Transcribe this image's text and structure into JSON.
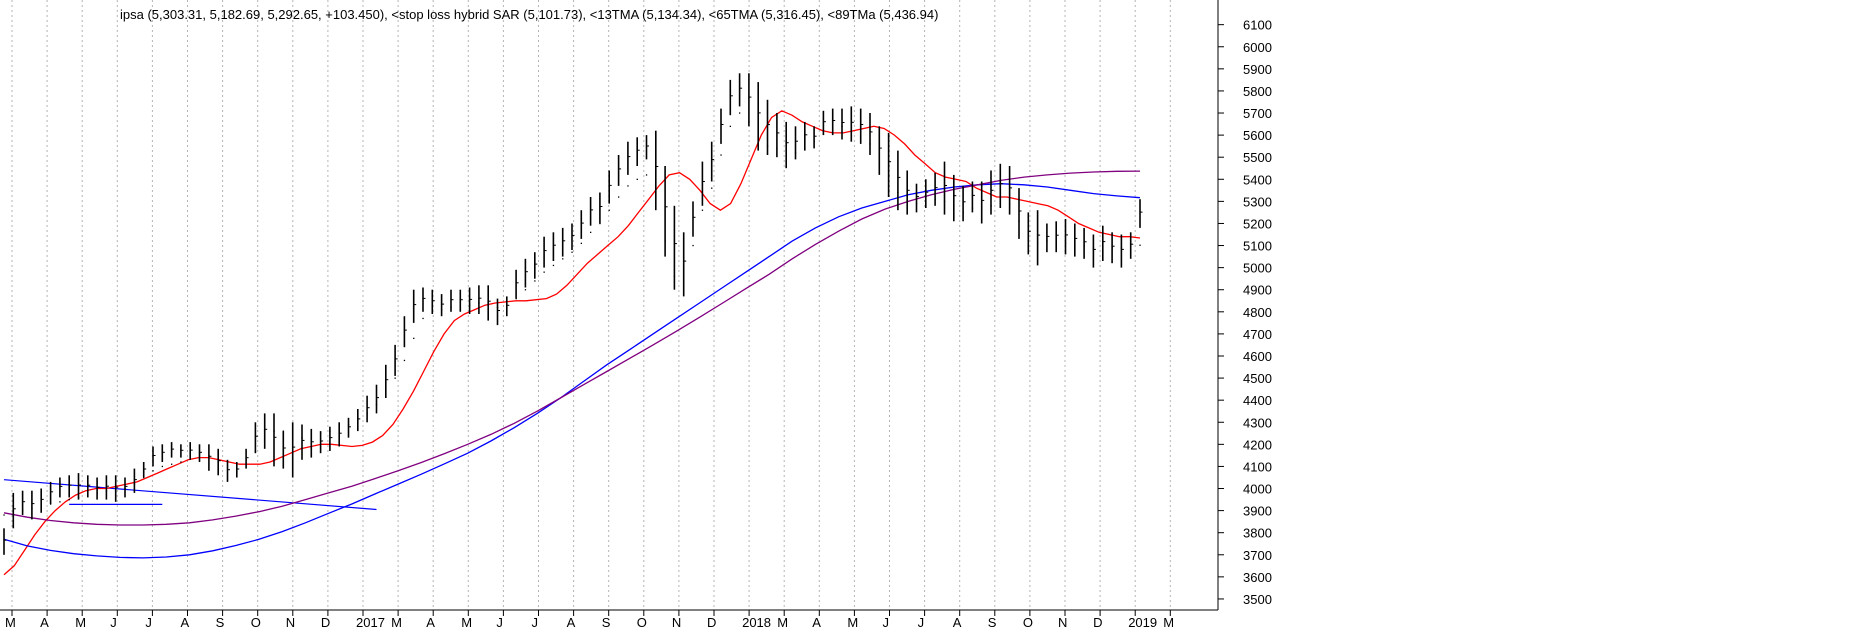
{
  "colors": {
    "background": "#ffffff",
    "grid": "#b4b4b4",
    "axis": "#000000",
    "price": "#000000",
    "sar": "#000000",
    "tma13": "#ff0000",
    "tma65": "#0000ff",
    "tma89": "#800080",
    "trendline": "#0000ff"
  },
  "chart_data": {
    "type": "line",
    "title": "ipsa (5,303.31, 5,182.69, 5,292.65, +103.450), <stop loss hybrid SAR (5,101.73), <13TMA (5,134.34), <65TMA (5,316.45), <89TMa (5,436.94)",
    "ylim": [
      3450,
      6180
    ],
    "y_ticks": [
      3500,
      3600,
      3700,
      3800,
      3900,
      4000,
      4100,
      4200,
      4300,
      4400,
      4500,
      4600,
      4700,
      4800,
      4900,
      5000,
      5100,
      5200,
      5300,
      5400,
      5500,
      5600,
      5700,
      5800,
      5900,
      6000,
      6100
    ],
    "x_ticks": [
      "M",
      "A",
      "M",
      "J",
      "J",
      "A",
      "S",
      "O",
      "N",
      "D",
      "2017",
      "M",
      "A",
      "M",
      "J",
      "J",
      "A",
      "S",
      "O",
      "N",
      "D",
      "2018",
      "M",
      "A",
      "M",
      "J",
      "J",
      "A",
      "S",
      "O",
      "N",
      "D",
      "2019",
      "M"
    ],
    "grid": "vertical dotted",
    "legend": "none",
    "price_bars": {
      "name": "ipsa",
      "type": "ohlc weekly bars",
      "highs": [
        3820,
        3980,
        3990,
        3990,
        4000,
        4030,
        4050,
        4060,
        4070,
        4060,
        4050,
        4060,
        4060,
        4050,
        4090,
        4120,
        4190,
        4200,
        4210,
        4200,
        4210,
        4200,
        4200,
        4180,
        4130,
        4120,
        4180,
        4300,
        4340,
        4340,
        4260,
        4300,
        4290,
        4270,
        4260,
        4280,
        4300,
        4320,
        4360,
        4420,
        4470,
        4560,
        4650,
        4780,
        4900,
        4910,
        4900,
        4880,
        4900,
        4900,
        4910,
        4920,
        4920,
        4860,
        4870,
        4990,
        5040,
        5070,
        5140,
        5160,
        5180,
        5200,
        5260,
        5320,
        5340,
        5440,
        5510,
        5570,
        5590,
        5600,
        5620,
        5460,
        5280,
        5160,
        5300,
        5480,
        5570,
        5720,
        5850,
        5880,
        5880,
        5840,
        5760,
        5700,
        5660,
        5640,
        5660,
        5640,
        5710,
        5720,
        5720,
        5730,
        5720,
        5700,
        5640,
        5610,
        5530,
        5440,
        5380,
        5400,
        5430,
        5480,
        5420,
        5370,
        5390,
        5390,
        5440,
        5470,
        5460,
        5360,
        5250,
        5260,
        5200,
        5210,
        5220,
        5200,
        5180,
        5150,
        5190,
        5160,
        5150,
        5160,
        5310
      ],
      "lows": [
        3700,
        3820,
        3880,
        3860,
        3890,
        3930,
        3960,
        3960,
        3950,
        3960,
        3950,
        3950,
        3940,
        3960,
        3980,
        4050,
        4100,
        4120,
        4140,
        4140,
        4130,
        4120,
        4080,
        4060,
        4030,
        4050,
        4090,
        4160,
        4180,
        4100,
        4090,
        4050,
        4130,
        4140,
        4160,
        4170,
        4190,
        4230,
        4260,
        4300,
        4340,
        4410,
        4510,
        4640,
        4750,
        4800,
        4790,
        4780,
        4800,
        4800,
        4790,
        4790,
        4760,
        4740,
        4780,
        4860,
        4910,
        4950,
        5000,
        5030,
        5050,
        5080,
        5130,
        5190,
        5200,
        5290,
        5370,
        5420,
        5460,
        5490,
        5260,
        5050,
        4900,
        4870,
        5140,
        5280,
        5390,
        5560,
        5690,
        5730,
        5640,
        5530,
        5510,
        5500,
        5450,
        5490,
        5530,
        5540,
        5600,
        5600,
        5580,
        5570,
        5560,
        5510,
        5420,
        5320,
        5260,
        5240,
        5250,
        5270,
        5280,
        5240,
        5210,
        5210,
        5250,
        5200,
        5240,
        5270,
        5240,
        5130,
        5060,
        5010,
        5070,
        5070,
        5060,
        5050,
        5040,
        5000,
        5030,
        5020,
        5000,
        5040,
        5180
      ],
      "last": {
        "open": 5189.2,
        "high": 5303.31,
        "low": 5182.69,
        "close": 5292.65,
        "change": 103.45
      }
    },
    "series": [
      {
        "name": "stop loss hybrid SAR",
        "last": 5101.73,
        "values": [
          3880,
          3890,
          3900,
          3910,
          3920,
          3930,
          3940,
          3950,
          3960,
          3970,
          3980,
          3990,
          3990,
          4000,
          4020,
          4050,
          4080,
          4100,
          4110,
          4120,
          4150,
          4160,
          4150,
          4140,
          4120,
          4110,
          4130,
          4170,
          4220,
          4260,
          4260,
          4240,
          4230,
          4240,
          4250,
          4260,
          4270,
          4290,
          4310,
          4340,
          4380,
          4430,
          4500,
          4580,
          4680,
          4770,
          4810,
          4810,
          4820,
          4830,
          4830,
          4840,
          4830,
          4820,
          4820,
          4860,
          4900,
          4940,
          4980,
          5010,
          5040,
          5070,
          5110,
          5160,
          5200,
          5260,
          5320,
          5370,
          5400,
          5420,
          5330,
          5120,
          4960,
          4930,
          5100,
          5260,
          5360,
          5510,
          5640,
          5700,
          5660,
          5580,
          5550,
          5540,
          5500,
          5520,
          5550,
          5570,
          5620,
          5640,
          5640,
          5620,
          5600,
          5560,
          5500,
          5420,
          5340,
          5300,
          5290,
          5300,
          5310,
          5300,
          5270,
          5250,
          5270,
          5250,
          5280,
          5300,
          5290,
          5210,
          5140,
          5110,
          5120,
          5120,
          5110,
          5110,
          5100,
          5090,
          5090,
          5090,
          5090,
          5100,
          5101.73
        ]
      },
      {
        "name": "13TMA",
        "last": 5134.34,
        "values": [
          3610,
          3650,
          3720,
          3790,
          3850,
          3900,
          3940,
          3970,
          3990,
          4000,
          4000,
          4010,
          4020,
          4030,
          4050,
          4070,
          4090,
          4110,
          4130,
          4140,
          4140,
          4130,
          4120,
          4110,
          4110,
          4110,
          4120,
          4140,
          4160,
          4180,
          4190,
          4200,
          4200,
          4195,
          4190,
          4195,
          4210,
          4240,
          4290,
          4360,
          4440,
          4530,
          4620,
          4700,
          4760,
          4790,
          4810,
          4830,
          4840,
          4845,
          4850,
          4850,
          4855,
          4860,
          4880,
          4920,
          4970,
          5020,
          5060,
          5100,
          5140,
          5190,
          5250,
          5310,
          5370,
          5420,
          5430,
          5400,
          5350,
          5290,
          5260,
          5290,
          5380,
          5490,
          5600,
          5680,
          5710,
          5690,
          5660,
          5640,
          5620,
          5610,
          5610,
          5620,
          5630,
          5640,
          5630,
          5600,
          5560,
          5510,
          5470,
          5430,
          5410,
          5400,
          5390,
          5360,
          5340,
          5320,
          5320,
          5310,
          5300,
          5290,
          5280,
          5260,
          5230,
          5200,
          5180,
          5160,
          5150,
          5140,
          5140,
          5134.34
        ]
      },
      {
        "name": "65TMA",
        "last": 5316.45,
        "values": [
          3770,
          3740,
          3720,
          3705,
          3695,
          3688,
          3686,
          3690,
          3700,
          3718,
          3742,
          3770,
          3805,
          3845,
          3888,
          3930,
          3975,
          4020,
          4065,
          4112,
          4160,
          4215,
          4275,
          4340,
          4410,
          4485,
          4560,
          4630,
          4700,
          4770,
          4840,
          4910,
          4980,
          5050,
          5120,
          5180,
          5230,
          5270,
          5300,
          5330,
          5350,
          5365,
          5375,
          5380,
          5375,
          5365,
          5350,
          5335,
          5325,
          5316.45
        ]
      },
      {
        "name": "89TMa",
        "last": 5436.94,
        "values": [
          3890,
          3870,
          3855,
          3845,
          3838,
          3835,
          3835,
          3838,
          3845,
          3858,
          3875,
          3895,
          3920,
          3950,
          3980,
          4010,
          4045,
          4080,
          4118,
          4158,
          4200,
          4245,
          4295,
          4350,
          4410,
          4470,
          4530,
          4590,
          4650,
          4712,
          4775,
          4840,
          4905,
          4970,
          5040,
          5105,
          5165,
          5220,
          5265,
          5300,
          5330,
          5355,
          5375,
          5395,
          5410,
          5420,
          5428,
          5433,
          5436,
          5436.94
        ]
      }
    ],
    "trendlines": [
      {
        "from": [
          0,
          4040
        ],
        "to": [
          40,
          3905
        ]
      },
      {
        "from": [
          7,
          3928
        ],
        "to": [
          17,
          3928
        ]
      }
    ]
  }
}
